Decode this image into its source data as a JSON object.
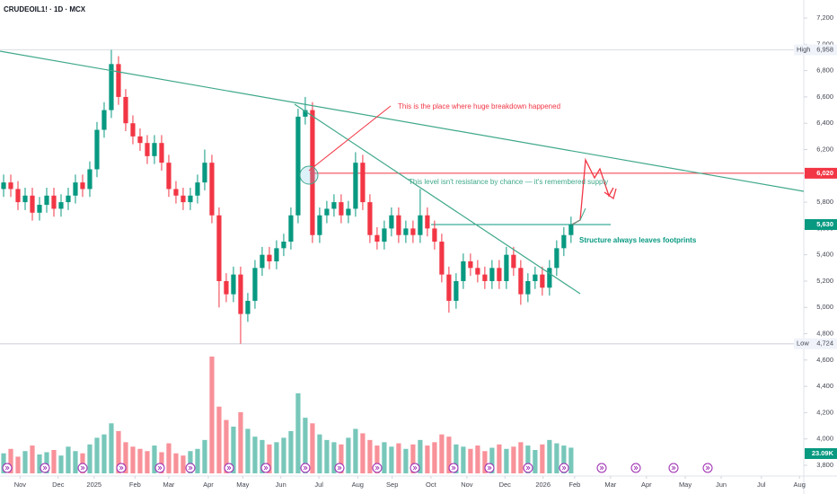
{
  "chart_data": {
    "type": "candlestick",
    "title": "CRUDEOIL1! · 1D · MCX",
    "up_color": "#089981",
    "down_color": "#f23645",
    "open": [
      5900,
      5950,
      5900,
      5800,
      5850,
      5720,
      5780,
      5850,
      5750,
      5800,
      5850,
      5950,
      5900,
      6050,
      6350,
      6500,
      6850,
      6600,
      6400,
      6300,
      6250,
      6150,
      6250,
      6100,
      5900,
      5850,
      5800,
      5850,
      5950,
      6100,
      5700,
      5200,
      5100,
      5250,
      4950,
      5050,
      5300,
      5400,
      5350,
      5450,
      5500,
      5700,
      6450,
      6500,
      5550,
      5700,
      5750,
      5800,
      5700,
      5750,
      6100,
      5800,
      5550,
      5500,
      5600,
      5700,
      5550,
      5600,
      5550,
      5700,
      5600,
      5500,
      5250,
      5050,
      5200,
      5350,
      5300,
      5250,
      5200,
      5300,
      5200,
      5400,
      5300,
      5100,
      5200,
      5250,
      5150,
      5300,
      5450,
      5550
    ],
    "high": [
      6010,
      6010,
      5960,
      5910,
      5910,
      5840,
      5910,
      5910,
      5860,
      5910,
      6010,
      6010,
      6110,
      6410,
      6560,
      6958,
      6910,
      6660,
      6460,
      6360,
      6310,
      6310,
      6310,
      6160,
      5960,
      5910,
      5910,
      6010,
      6200,
      6160,
      5760,
      5260,
      5310,
      5310,
      5110,
      5360,
      5460,
      5460,
      5510,
      5560,
      5760,
      6510,
      6600,
      6560,
      5760,
      5810,
      5860,
      5860,
      5810,
      6180,
      6160,
      5860,
      5610,
      5660,
      5760,
      5760,
      5660,
      5660,
      5900,
      5760,
      5660,
      5560,
      5310,
      5260,
      5410,
      5410,
      5360,
      5310,
      5360,
      5360,
      5460,
      5460,
      5360,
      5260,
      5310,
      5310,
      5360,
      5510,
      5610,
      5690
    ],
    "low": [
      5840,
      5840,
      5740,
      5740,
      5660,
      5660,
      5720,
      5690,
      5690,
      5740,
      5790,
      5840,
      5840,
      5990,
      6290,
      6440,
      6540,
      6340,
      6240,
      6190,
      6090,
      6090,
      6040,
      5840,
      5790,
      5740,
      5740,
      5790,
      5890,
      5640,
      5000,
      5040,
      5040,
      4724,
      4890,
      4990,
      5240,
      5290,
      5290,
      5390,
      5440,
      5640,
      6390,
      5490,
      5490,
      5640,
      5690,
      5640,
      5640,
      5690,
      5740,
      5490,
      5440,
      5440,
      5540,
      5490,
      5490,
      5490,
      5490,
      5540,
      5440,
      5190,
      4960,
      4990,
      5140,
      5240,
      5190,
      5140,
      5140,
      5140,
      5140,
      5240,
      5020,
      5040,
      5140,
      5090,
      5090,
      5240,
      5390,
      5490
    ],
    "close": [
      5950,
      5900,
      5800,
      5850,
      5720,
      5780,
      5850,
      5750,
      5800,
      5850,
      5950,
      5900,
      6050,
      6350,
      6500,
      6850,
      6600,
      6400,
      6300,
      6250,
      6150,
      6250,
      6100,
      5900,
      5850,
      5800,
      5850,
      5950,
      6100,
      5700,
      5200,
      5100,
      5250,
      4950,
      5050,
      5300,
      5400,
      5350,
      5450,
      5500,
      5700,
      6450,
      6500,
      5550,
      5700,
      5750,
      5800,
      5700,
      5750,
      6100,
      5800,
      5550,
      5500,
      5600,
      5700,
      5550,
      5600,
      5550,
      5700,
      5600,
      5500,
      5250,
      5050,
      5200,
      5350,
      5300,
      5250,
      5200,
      5300,
      5200,
      5400,
      5300,
      5100,
      5200,
      5250,
      5150,
      5300,
      5450,
      5550,
      5630
    ],
    "volume": [
      18,
      22,
      15,
      20,
      25,
      17,
      19,
      21,
      16,
      24,
      20,
      18,
      26,
      32,
      35,
      45,
      38,
      28,
      24,
      22,
      20,
      25,
      19,
      27,
      18,
      16,
      20,
      22,
      30,
      105,
      60,
      48,
      42,
      55,
      40,
      33,
      30,
      26,
      28,
      32,
      38,
      72,
      50,
      45,
      35,
      30,
      28,
      26,
      32,
      40,
      36,
      30,
      25,
      28,
      24,
      27,
      22,
      26,
      30,
      25,
      28,
      35,
      33,
      26,
      24,
      22,
      25,
      20,
      23,
      26,
      22,
      24,
      28,
      25,
      21,
      26,
      30,
      27,
      25,
      23.09
    ],
    "volume_last_label": "23.09K",
    "xlim": [
      -0.5,
      111.4
    ],
    "ylim": [
      3718,
      7337
    ],
    "xticks": [
      {
        "value": 2.3,
        "label": "Nov"
      },
      {
        "value": 7.6,
        "label": "Dec"
      },
      {
        "value": 12.6,
        "label": "2025"
      },
      {
        "value": 18.3,
        "label": "Feb"
      },
      {
        "value": 23,
        "label": "Mar"
      },
      {
        "value": 28.5,
        "label": "Apr"
      },
      {
        "value": 33.3,
        "label": "May"
      },
      {
        "value": 38.6,
        "label": "Jun"
      },
      {
        "value": 43.9,
        "label": "Jul"
      },
      {
        "value": 49.3,
        "label": "Aug"
      },
      {
        "value": 54.1,
        "label": "Sep"
      },
      {
        "value": 59.5,
        "label": "Oct"
      },
      {
        "value": 64.5,
        "label": "Nov"
      },
      {
        "value": 69.8,
        "label": "Dec"
      },
      {
        "value": 75.1,
        "label": "2026"
      },
      {
        "value": 79.5,
        "label": "Feb"
      },
      {
        "value": 84.5,
        "label": "Mar"
      },
      {
        "value": 89.5,
        "label": "Apr"
      },
      {
        "value": 94.9,
        "label": "May"
      },
      {
        "value": 99.9,
        "label": "Jun"
      },
      {
        "value": 105.5,
        "label": "Jul"
      },
      {
        "value": 110.8,
        "label": "Aug"
      }
    ],
    "yticks": [
      {
        "value": 7200,
        "label": "7,200"
      },
      {
        "value": 7000,
        "label": "7,000"
      },
      {
        "value": 6800,
        "label": "6,800"
      },
      {
        "value": 6600,
        "label": "6,600"
      },
      {
        "value": 6400,
        "label": "6,400"
      },
      {
        "value": 6200,
        "label": "6,200"
      },
      {
        "value": 6000,
        "label": "6,000"
      },
      {
        "value": 5800,
        "label": "5,800"
      },
      {
        "value": 5600,
        "label": "5,600"
      },
      {
        "value": 5400,
        "label": "5,400"
      },
      {
        "value": 5200,
        "label": "5,200"
      },
      {
        "value": 5000,
        "label": "5,000"
      },
      {
        "value": 4800,
        "label": "4,800"
      },
      {
        "value": 4600,
        "label": "4,600"
      },
      {
        "value": 4400,
        "label": "4,400"
      },
      {
        "value": 4200,
        "label": "4,200"
      },
      {
        "value": 4000,
        "label": "4,000"
      },
      {
        "value": 3800,
        "label": "3,800"
      }
    ],
    "high_marker": {
      "text": "High",
      "value": 6958,
      "label": "6,958"
    },
    "low_marker": {
      "text": "Low",
      "value": 4724,
      "label": "4,724"
    },
    "levels": [
      {
        "value": 6020,
        "label": "6,020",
        "color": "#f23645"
      },
      {
        "value": 5630,
        "label": "5,630",
        "color": "#089981"
      }
    ],
    "annotations": [
      "This is the place where huge breakdown happened",
      "This level isn't resistance by chance — it's remembered supply",
      "Structure always leaves footprints"
    ]
  }
}
